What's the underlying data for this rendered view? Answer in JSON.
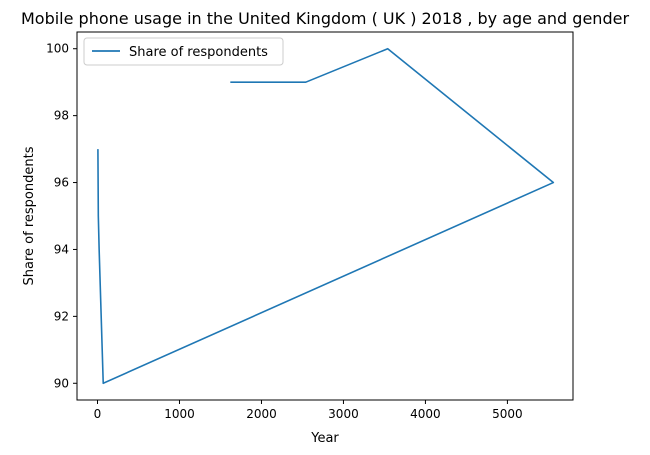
{
  "chart_data": {
    "type": "line",
    "title": "Mobile phone usage in the United Kingdom ( UK ) 2018 , by age and gender",
    "xlabel": "Year",
    "ylabel": "Share of respondents",
    "xlim": [
      -250,
      5800
    ],
    "ylim": [
      89.5,
      100.5
    ],
    "xticks": [
      0,
      1000,
      2000,
      3000,
      4000,
      5000
    ],
    "yticks": [
      90,
      92,
      94,
      96,
      98,
      100
    ],
    "grid": false,
    "legend": {
      "position": "top-left",
      "entries": [
        "Share of respondents"
      ]
    },
    "series": [
      {
        "name": "Share of respondents",
        "color": "#1f77b4",
        "x": [
          1620,
          2540,
          3540,
          5560,
          70,
          20,
          10,
          5
        ],
        "y": [
          99,
          99,
          100,
          96,
          90,
          94,
          95,
          97
        ]
      }
    ]
  }
}
